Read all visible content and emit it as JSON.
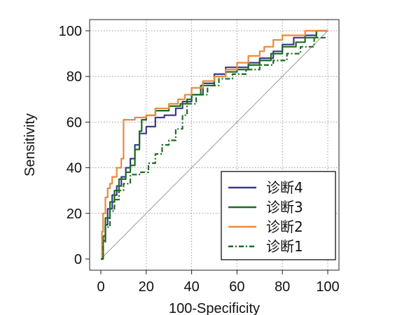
{
  "chart_data": {
    "type": "line",
    "title": "",
    "xlabel": "100-Specificity",
    "ylabel": "Sensitivity",
    "xlim": [
      0,
      100
    ],
    "ylim": [
      0,
      100
    ],
    "xticks": [
      0,
      20,
      40,
      60,
      80,
      100
    ],
    "yticks": [
      0,
      20,
      40,
      60,
      80,
      100
    ],
    "grid": true,
    "legend_position": "bottom-right",
    "reference_line": {
      "x": [
        0,
        100
      ],
      "y": [
        0,
        100
      ],
      "color": "#9a9a9a"
    },
    "series": [
      {
        "name": "诊断4",
        "color": "#3b3a8c",
        "dash": "solid",
        "x": [
          0,
          1,
          1,
          2,
          2,
          3,
          3,
          5,
          5,
          7,
          7,
          9,
          9,
          11,
          11,
          13,
          13,
          15,
          15,
          17,
          17,
          20,
          20,
          24,
          24,
          28,
          28,
          33,
          33,
          36,
          36,
          40,
          40,
          45,
          45,
          50,
          50,
          55,
          55,
          60,
          60,
          65,
          65,
          70,
          70,
          76,
          76,
          80,
          80,
          85,
          85,
          90,
          90,
          95,
          95,
          100
        ],
        "y": [
          0,
          0,
          8,
          8,
          15,
          15,
          22,
          22,
          28,
          28,
          32,
          32,
          36,
          36,
          40,
          40,
          44,
          44,
          50,
          50,
          55,
          55,
          58,
          58,
          62,
          62,
          63,
          63,
          66,
          66,
          69,
          69,
          72,
          72,
          77,
          77,
          81,
          81,
          84,
          84,
          84,
          84,
          86,
          86,
          88,
          88,
          91,
          91,
          94,
          94,
          97,
          97,
          98,
          98,
          100,
          100
        ]
      },
      {
        "name": "诊断3",
        "color": "#1e6b22",
        "dash": "solid",
        "x": [
          0,
          1,
          1,
          2,
          2,
          4,
          4,
          6,
          6,
          8,
          8,
          11,
          11,
          13,
          13,
          15,
          15,
          17,
          17,
          18,
          18,
          20,
          20,
          24,
          24,
          30,
          30,
          35,
          35,
          38,
          38,
          40,
          40,
          44,
          44,
          50,
          50,
          55,
          55,
          60,
          60,
          65,
          65,
          70,
          70,
          75,
          75,
          80,
          80,
          86,
          86,
          90,
          90,
          95,
          95,
          100
        ],
        "y": [
          0,
          0,
          10,
          10,
          18,
          18,
          25,
          25,
          30,
          30,
          35,
          35,
          38,
          38,
          41,
          41,
          48,
          48,
          56,
          56,
          61,
          61,
          63,
          63,
          65,
          65,
          67,
          67,
          68,
          68,
          70,
          70,
          72,
          72,
          76,
          76,
          80,
          80,
          82,
          82,
          83,
          83,
          85,
          85,
          87,
          87,
          90,
          90,
          93,
          93,
          95,
          95,
          97,
          97,
          100,
          100
        ]
      },
      {
        "name": "诊断2",
        "color": "#e88a3c",
        "dash": "solid",
        "x": [
          0,
          0.5,
          0.5,
          1,
          1,
          2,
          2,
          3,
          3,
          4,
          4,
          5,
          5,
          7,
          7,
          9,
          9,
          10,
          10,
          13,
          13,
          15,
          15,
          20,
          20,
          24,
          24,
          30,
          30,
          34,
          34,
          37,
          37,
          40,
          40,
          45,
          45,
          50,
          50,
          55,
          55,
          60,
          60,
          65,
          65,
          70,
          70,
          72,
          72,
          76,
          76,
          80,
          80,
          85,
          85,
          90,
          90,
          100
        ],
        "y": [
          0,
          0,
          12,
          12,
          20,
          20,
          27,
          27,
          31,
          31,
          33,
          33,
          36,
          36,
          40,
          40,
          44,
          44,
          61,
          61,
          61,
          61,
          62,
          62,
          63,
          63,
          66,
          66,
          68,
          68,
          70,
          70,
          72,
          72,
          75,
          75,
          78,
          78,
          80,
          80,
          83,
          83,
          86,
          86,
          89,
          89,
          91,
          91,
          93,
          93,
          96,
          96,
          98,
          98,
          98,
          98,
          100,
          100
        ]
      },
      {
        "name": "诊断1",
        "color": "#1e6b22",
        "dash": "dashdot",
        "x": [
          0,
          1,
          1,
          2,
          2,
          4,
          4,
          6,
          6,
          8,
          8,
          10,
          10,
          13,
          13,
          17,
          17,
          21,
          21,
          24,
          24,
          27,
          27,
          30,
          30,
          33,
          33,
          36,
          36,
          38,
          38,
          42,
          42,
          47,
          47,
          52,
          52,
          58,
          58,
          64,
          64,
          70,
          70,
          76,
          76,
          82,
          82,
          88,
          88,
          94,
          94,
          100
        ],
        "y": [
          0,
          0,
          7,
          7,
          14,
          14,
          21,
          21,
          26,
          26,
          30,
          30,
          33,
          33,
          37,
          37,
          38,
          38,
          42,
          42,
          46,
          46,
          50,
          50,
          52,
          52,
          57,
          57,
          63,
          63,
          68,
          68,
          72,
          72,
          76,
          76,
          79,
          79,
          81,
          81,
          83,
          83,
          85,
          85,
          87,
          87,
          90,
          90,
          93,
          93,
          97,
          97
        ]
      }
    ]
  }
}
